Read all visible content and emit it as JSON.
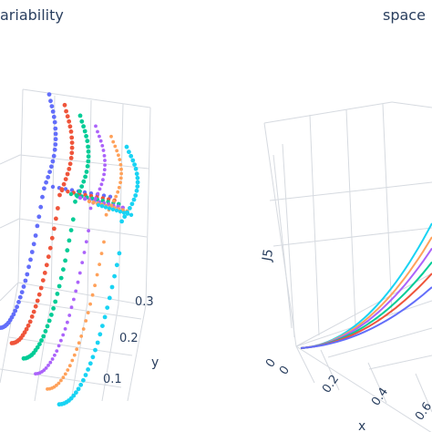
{
  "chart_data": [
    {
      "type": "scatter3d",
      "title": "ariability",
      "yaxis": {
        "title": "y",
        "ticks": [
          "0.1",
          "0.2",
          "0.3"
        ]
      },
      "series": [
        {
          "color": "#636efa",
          "values": [
            0.05,
            0.12,
            0.22,
            0.35,
            0.5,
            0.7,
            0.95,
            1.25,
            1.6
          ]
        },
        {
          "color": "#ef553b",
          "values": [
            0.05,
            0.11,
            0.2,
            0.32,
            0.46,
            0.64,
            0.86,
            1.12,
            1.42
          ]
        },
        {
          "color": "#00cc96",
          "values": [
            0.05,
            0.1,
            0.18,
            0.29,
            0.42,
            0.58,
            0.78,
            1.0,
            1.28
          ]
        },
        {
          "color": "#ab63fa",
          "values": [
            0.05,
            0.09,
            0.16,
            0.26,
            0.38,
            0.52,
            0.7,
            0.9,
            1.15
          ]
        },
        {
          "color": "#ffa15a",
          "values": [
            0.05,
            0.08,
            0.14,
            0.23,
            0.34,
            0.47,
            0.63,
            0.82,
            1.04
          ]
        },
        {
          "color": "#19d3f3",
          "values": [
            0.05,
            0.07,
            0.12,
            0.2,
            0.3,
            0.42,
            0.56,
            0.74,
            0.94
          ]
        }
      ]
    },
    {
      "type": "line3d",
      "title": "space",
      "zaxis": {
        "title": "J5"
      },
      "xaxis": {
        "ticks": [
          "0",
          "0.2",
          "0.4",
          "0.6"
        ],
        "title": "x"
      },
      "yaxis": {
        "ticks": [
          "0"
        ]
      },
      "series": [
        {
          "color": "#19d3f3",
          "values": [
            0,
            0.02,
            0.08,
            0.18,
            0.32,
            0.5
          ]
        },
        {
          "color": "#ffa15a",
          "values": [
            0,
            0.018,
            0.07,
            0.16,
            0.28,
            0.44
          ]
        },
        {
          "color": "#ab63fa",
          "values": [
            0,
            0.015,
            0.06,
            0.14,
            0.25,
            0.39
          ]
        },
        {
          "color": "#00cc96",
          "values": [
            0,
            0.013,
            0.052,
            0.12,
            0.21,
            0.33
          ]
        },
        {
          "color": "#ef553b",
          "values": [
            0,
            0.011,
            0.045,
            0.1,
            0.18,
            0.28
          ]
        },
        {
          "color": "#636efa",
          "values": [
            0,
            0.009,
            0.036,
            0.08,
            0.14,
            0.22
          ]
        }
      ]
    }
  ]
}
